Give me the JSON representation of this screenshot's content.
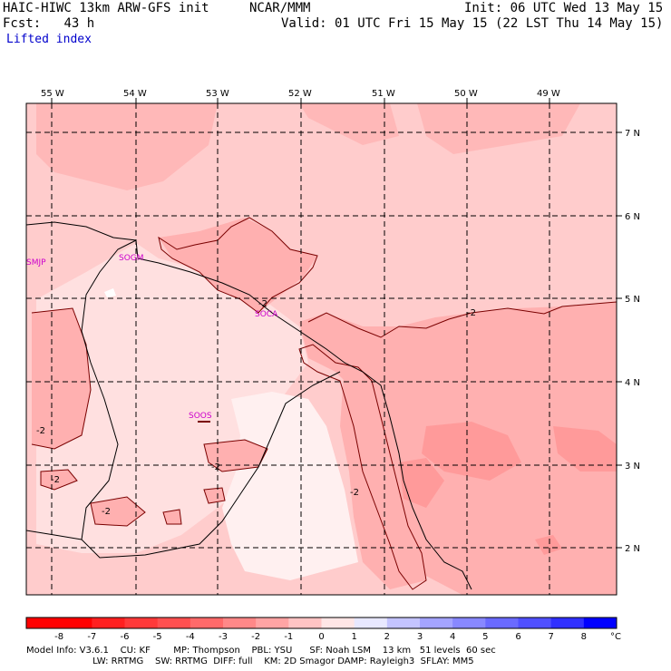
{
  "header": {
    "model_title": "HAIC-HIWC 13km ARW-GFS init",
    "org": "NCAR/MMM",
    "init": "Init: 06 UTC Wed 13 May 15",
    "fcst_label": "Fcst:",
    "fcst_value": "43 h",
    "valid": "Valid: 01 UTC Fri 15 May 15 (22 LST Thu 14 May 15)",
    "field": "Lifted index"
  },
  "map": {
    "longitudes": [
      "55 W",
      "54 W",
      "53 W",
      "52 W",
      "51 W",
      "50 W",
      "49 W"
    ],
    "latitudes": [
      "7 N",
      "6 N",
      "5 N",
      "4 N",
      "3 N",
      "2 N"
    ],
    "stations": [
      "SMJP",
      "SOGM",
      "SOCA",
      "SOOS"
    ],
    "contour_label": "-2",
    "colors": {
      "level_0_to_m1": "#fff0f0",
      "level_m1_to_m2": "#ffcccc",
      "level_m2_to_m3": "#ffb0b0",
      "level_m3_to_m4": "#ff9a9a"
    }
  },
  "colorbar": {
    "ticks": [
      "-8",
      "-7",
      "-6",
      "-5",
      "-4",
      "-3",
      "-2",
      "-1",
      "0",
      "1",
      "2",
      "3",
      "4",
      "5",
      "6",
      "7",
      "8"
    ],
    "unit": "°C",
    "colors": [
      "#ff0000",
      "#ff2020",
      "#ff3a3a",
      "#ff5050",
      "#ff6a6a",
      "#ff8888",
      "#ffa4a4",
      "#ffc4c4",
      "#ffe6e6",
      "#e8e8ff",
      "#c4c4ff",
      "#a4a4ff",
      "#8888ff",
      "#6a6aff",
      "#5050ff",
      "#3030ff",
      "#0000ff"
    ]
  },
  "footer": {
    "line1": "Model Info: V3.6.1    CU: KF        MP: Thompson    PBL: YSU      SF: Noah LSM    13 km   51 levels  60 sec",
    "line2": "                       LW: RRTMG    SW: RRTMG  DIFF: full    KM: 2D Smagor DAMP: Rayleigh3  SFLAY: MM5"
  }
}
